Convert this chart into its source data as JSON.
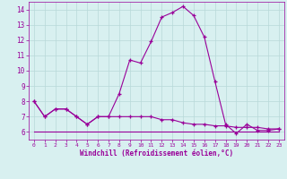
{
  "xlabel": "Windchill (Refroidissement éolien,°C)",
  "x": [
    0,
    1,
    2,
    3,
    4,
    5,
    6,
    7,
    8,
    9,
    10,
    11,
    12,
    13,
    14,
    15,
    16,
    17,
    18,
    19,
    20,
    21,
    22,
    23
  ],
  "line1": [
    8.0,
    7.0,
    7.5,
    7.5,
    7.0,
    6.5,
    7.0,
    7.0,
    8.5,
    10.7,
    10.5,
    11.9,
    13.5,
    13.8,
    14.2,
    13.6,
    12.2,
    9.3,
    6.5,
    5.9,
    6.5,
    6.1,
    6.1,
    6.2
  ],
  "line2": [
    8.0,
    7.0,
    7.5,
    7.5,
    7.0,
    6.5,
    7.0,
    7.0,
    7.0,
    7.0,
    7.0,
    7.0,
    6.8,
    6.8,
    6.6,
    6.5,
    6.5,
    6.4,
    6.4,
    6.3,
    6.3,
    6.3,
    6.2,
    6.2
  ],
  "line3": [
    6.0,
    6.0,
    6.0,
    6.0,
    6.0,
    6.0,
    6.0,
    6.0,
    6.0,
    6.0,
    6.0,
    6.0,
    6.0,
    6.0,
    6.0,
    6.0,
    6.0,
    6.0,
    6.0,
    6.0,
    6.0,
    6.0,
    6.0,
    6.0
  ],
  "line_color": "#990099",
  "bg_color": "#d8f0f0",
  "grid_color": "#b8d8d8",
  "ylim": [
    5.5,
    14.5
  ],
  "yticks": [
    6,
    7,
    8,
    9,
    10,
    11,
    12,
    13,
    14
  ],
  "xlim": [
    -0.5,
    23.5
  ],
  "xticks": [
    0,
    1,
    2,
    3,
    4,
    5,
    6,
    7,
    8,
    9,
    10,
    11,
    12,
    13,
    14,
    15,
    16,
    17,
    18,
    19,
    20,
    21,
    22,
    23
  ]
}
